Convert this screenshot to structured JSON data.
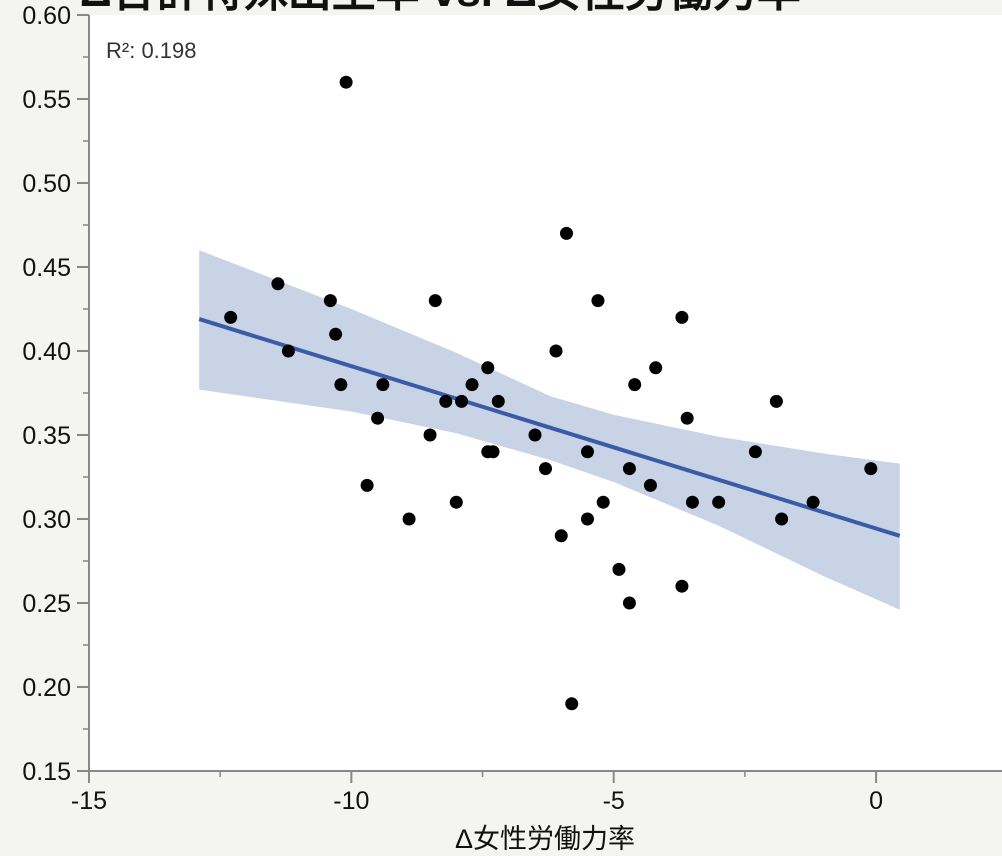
{
  "chart_data": {
    "type": "scatter",
    "title": "Δ合計特殊出生率 vs. Δ女性労働力率",
    "xlabel": "Δ女性労働力率",
    "ylabel": "",
    "xlim": [
      -15,
      2.4
    ],
    "ylim": [
      0.15,
      0.6
    ],
    "xticks": [
      -15,
      -10,
      -5,
      0
    ],
    "xtick_labels": [
      "-15",
      "-10",
      "-5",
      "0"
    ],
    "yticks": [
      0.15,
      0.2,
      0.25,
      0.3,
      0.35,
      0.4,
      0.45,
      0.5,
      0.55,
      0.6
    ],
    "ytick_labels": [
      "0.15",
      "0.20",
      "0.25",
      "0.30",
      "0.35",
      "0.40",
      "0.45",
      "0.50",
      "0.55",
      "0.60"
    ],
    "annotation": "R²: 0.198",
    "grid": false,
    "points": [
      [
        -12.3,
        0.42
      ],
      [
        -11.4,
        0.44
      ],
      [
        -11.2,
        0.4
      ],
      [
        -10.4,
        0.43
      ],
      [
        -10.3,
        0.41
      ],
      [
        -10.2,
        0.38
      ],
      [
        -10.1,
        0.56
      ],
      [
        -9.7,
        0.32
      ],
      [
        -9.5,
        0.36
      ],
      [
        -9.4,
        0.38
      ],
      [
        -8.9,
        0.3
      ],
      [
        -8.5,
        0.35
      ],
      [
        -8.4,
        0.43
      ],
      [
        -8.2,
        0.37
      ],
      [
        -8.0,
        0.31
      ],
      [
        -7.9,
        0.37
      ],
      [
        -7.7,
        0.38
      ],
      [
        -7.4,
        0.39
      ],
      [
        -7.4,
        0.34
      ],
      [
        -7.3,
        0.34
      ],
      [
        -7.2,
        0.37
      ],
      [
        -6.5,
        0.35
      ],
      [
        -6.3,
        0.33
      ],
      [
        -6.1,
        0.4
      ],
      [
        -6.0,
        0.29
      ],
      [
        -5.9,
        0.47
      ],
      [
        -5.8,
        0.19
      ],
      [
        -5.5,
        0.34
      ],
      [
        -5.5,
        0.3
      ],
      [
        -5.3,
        0.43
      ],
      [
        -5.2,
        0.31
      ],
      [
        -4.9,
        0.27
      ],
      [
        -4.7,
        0.33
      ],
      [
        -4.7,
        0.25
      ],
      [
        -4.6,
        0.38
      ],
      [
        -4.3,
        0.32
      ],
      [
        -4.2,
        0.39
      ],
      [
        -3.7,
        0.42
      ],
      [
        -3.7,
        0.26
      ],
      [
        -3.6,
        0.36
      ],
      [
        -3.5,
        0.31
      ],
      [
        -3.0,
        0.31
      ],
      [
        -2.3,
        0.34
      ],
      [
        -1.9,
        0.37
      ],
      [
        -1.8,
        0.3
      ],
      [
        -1.2,
        0.31
      ],
      [
        -0.1,
        0.33
      ]
    ],
    "fit_line": {
      "x": [
        -12.9,
        0.45
      ],
      "y": [
        0.419,
        0.29
      ],
      "color": "#3a5ba6"
    },
    "confidence_band": {
      "color": "#c9d3e6",
      "upper": [
        [
          -12.9,
          0.46
        ],
        [
          -10,
          0.425
        ],
        [
          -8,
          0.399
        ],
        [
          -6.2,
          0.373
        ],
        [
          -5,
          0.362
        ],
        [
          -3,
          0.349
        ],
        [
          -1,
          0.339
        ],
        [
          0.45,
          0.333
        ]
      ],
      "lower": [
        [
          0.45,
          0.246
        ],
        [
          -1,
          0.266
        ],
        [
          -3,
          0.296
        ],
        [
          -5,
          0.322
        ],
        [
          -6.2,
          0.335
        ],
        [
          -8,
          0.351
        ],
        [
          -10,
          0.364
        ],
        [
          -12.9,
          0.377
        ]
      ]
    },
    "point_color": "#000000"
  }
}
